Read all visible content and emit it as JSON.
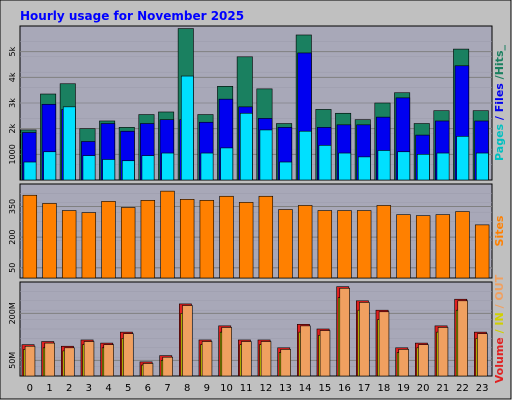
{
  "chart_data": {
    "type": "bar",
    "title": "Hourly usage for November 2025",
    "categories": [
      "0",
      "1",
      "2",
      "3",
      "4",
      "5",
      "6",
      "7",
      "8",
      "9",
      "10",
      "11",
      "12",
      "13",
      "14",
      "15",
      "16",
      "17",
      "18",
      "19",
      "20",
      "21",
      "22",
      "23"
    ],
    "panels": [
      {
        "name": "hits-files-pages",
        "ylim": [
          0,
          6000
        ],
        "yticks": [
          "1000",
          "2k",
          "3k",
          "4k",
          "5k"
        ],
        "ytick_values": [
          1000,
          2000,
          3000,
          4000,
          5000
        ],
        "ylabel_parts": [
          "Pages",
          " / ",
          "Files",
          " /",
          "Hits",
          "_"
        ],
        "series": [
          {
            "name": "Hits",
            "color": "#1a8060",
            "values": [
              1950,
              3350,
              3750,
              2000,
              2300,
              2050,
              2550,
              2650,
              5900,
              2550,
              3650,
              4800,
              3550,
              2200,
              5650,
              2750,
              2600,
              2350,
              3000,
              3400,
              2200,
              2700,
              5100,
              2700
            ]
          },
          {
            "name": "Files",
            "color": "#0000f0",
            "values": [
              1850,
              2950,
              2750,
              1500,
              2200,
              1900,
              2200,
              2350,
              2350,
              2250,
              3150,
              2850,
              2400,
              2050,
              4950,
              2050,
              2150,
              2150,
              2450,
              3200,
              1750,
              2300,
              4450,
              2300
            ]
          },
          {
            "name": "Pages",
            "color": "#00e0ff",
            "values": [
              700,
              1100,
              2850,
              950,
              800,
              750,
              950,
              1050,
              4050,
              1050,
              1250,
              2600,
              1950,
              700,
              1900,
              1350,
              1050,
              900,
              1150,
              1100,
              1000,
              1050,
              1700,
              1050
            ]
          }
        ]
      },
      {
        "name": "sites",
        "ylim": [
          0,
          460
        ],
        "yticks": [
          "50",
          "200",
          "350"
        ],
        "ytick_values": [
          50,
          200,
          350
        ],
        "ylabel_parts": [
          "Sites"
        ],
        "series": [
          {
            "name": "Sites",
            "color": "#ff8000",
            "values": [
              405,
              365,
              330,
              320,
              375,
              345,
              380,
              425,
              385,
              380,
              400,
              370,
              400,
              335,
              355,
              330,
              330,
              330,
              355,
              310,
              305,
              310,
              325,
              260
            ]
          }
        ]
      },
      {
        "name": "volume",
        "ylim": [
          0,
          300
        ],
        "yticks": [
          "50M",
          "200M"
        ],
        "ytick_values": [
          50,
          200
        ],
        "ylabel_parts": [
          "Volume",
          " / ",
          "IN",
          " / ",
          "OUT"
        ],
        "series": [
          {
            "name": "Volume",
            "color": "#e02020",
            "values": [
              100,
              110,
              95,
              115,
              105,
              140,
              45,
              65,
              230,
              115,
              160,
              115,
              115,
              90,
              165,
              150,
              285,
              240,
              210,
              90,
              105,
              160,
              245,
              140
            ]
          },
          {
            "name": "IN",
            "color": "#d0d000",
            "values": [
              85,
              90,
              80,
              100,
              90,
              120,
              35,
              50,
              200,
              100,
              140,
              100,
              100,
              75,
              140,
              130,
              250,
              210,
              180,
              75,
              90,
              140,
              210,
              120
            ]
          },
          {
            "name": "OUT",
            "color": "#f0a060",
            "values": [
              95,
              105,
              90,
              110,
              100,
              135,
              40,
              60,
              225,
              110,
              155,
              110,
              110,
              85,
              160,
              145,
              280,
              235,
              205,
              85,
              100,
              155,
              240,
              135
            ]
          }
        ]
      }
    ],
    "colors": {
      "background": "#c0c0c0",
      "plot": "#a8a8b8",
      "grid": "#808080",
      "title": "#0000ff",
      "pages": "#00c0c0",
      "files": "#0000f0",
      "hits": "#1a8060",
      "sites": "#ff8000",
      "volume": "#e02020",
      "in": "#d0d000",
      "out": "#f0a060"
    }
  }
}
